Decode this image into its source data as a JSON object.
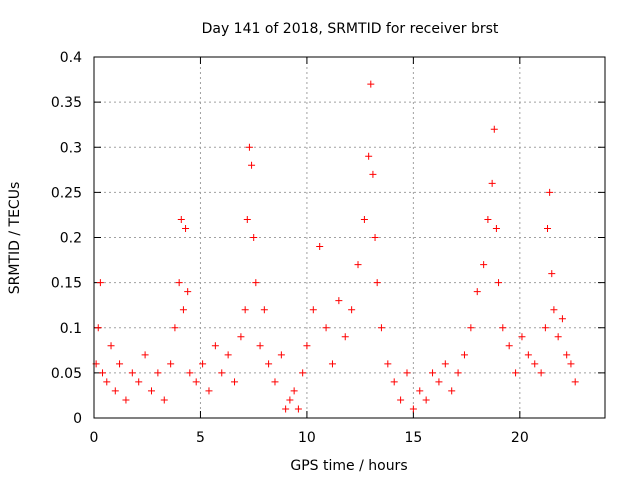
{
  "chart_data": {
    "type": "scatter",
    "title": "Day 141 of 2018, SRMTID for receiver brst",
    "xlabel": "GPS time / hours",
    "ylabel": "SRMTID / TECUs",
    "xlim": [
      0,
      24
    ],
    "ylim": [
      0,
      0.4
    ],
    "xticks": [
      0,
      5,
      10,
      15,
      20
    ],
    "xtick_labels": [
      "0",
      "5",
      "10",
      "15",
      "20"
    ],
    "yticks": [
      0,
      0.05,
      0.1,
      0.15,
      0.2,
      0.25,
      0.3,
      0.35,
      0.4
    ],
    "ytick_labels": [
      "0",
      "0.05",
      "0.1",
      "0.15",
      "0.2",
      "0.25",
      "0.3",
      "0.35",
      "0.4"
    ],
    "grid": true,
    "marker": "+",
    "color": "#ff0000",
    "series": [
      {
        "name": "brst",
        "x": [
          0.1,
          0.2,
          0.3,
          0.4,
          0.6,
          0.8,
          1.0,
          1.2,
          1.5,
          1.8,
          2.1,
          2.4,
          2.7,
          3.0,
          3.3,
          3.6,
          3.8,
          4.0,
          4.1,
          4.2,
          4.3,
          4.4,
          4.5,
          4.8,
          5.1,
          5.4,
          5.7,
          6.0,
          6.3,
          6.6,
          6.9,
          7.1,
          7.2,
          7.3,
          7.4,
          7.5,
          7.6,
          7.8,
          8.0,
          8.2,
          8.5,
          8.8,
          9.0,
          9.2,
          9.4,
          9.6,
          9.8,
          10.0,
          10.3,
          10.6,
          10.9,
          11.2,
          11.5,
          11.8,
          12.1,
          12.4,
          12.7,
          12.9,
          13.0,
          13.1,
          13.2,
          13.3,
          13.5,
          13.8,
          14.1,
          14.4,
          14.7,
          15.0,
          15.3,
          15.6,
          15.9,
          16.2,
          16.5,
          16.8,
          17.1,
          17.4,
          17.7,
          18.0,
          18.3,
          18.5,
          18.7,
          18.8,
          18.9,
          19.0,
          19.2,
          19.5,
          19.8,
          20.1,
          20.4,
          20.7,
          21.0,
          21.2,
          21.3,
          21.4,
          21.5,
          21.6,
          21.8,
          22.0,
          22.2,
          22.4,
          22.6
        ],
        "y": [
          0.06,
          0.1,
          0.15,
          0.05,
          0.04,
          0.08,
          0.03,
          0.06,
          0.02,
          0.05,
          0.04,
          0.07,
          0.03,
          0.05,
          0.02,
          0.06,
          0.1,
          0.15,
          0.22,
          0.12,
          0.21,
          0.14,
          0.05,
          0.04,
          0.06,
          0.03,
          0.08,
          0.05,
          0.07,
          0.04,
          0.09,
          0.12,
          0.22,
          0.3,
          0.28,
          0.2,
          0.15,
          0.08,
          0.12,
          0.06,
          0.04,
          0.07,
          0.01,
          0.02,
          0.03,
          0.01,
          0.05,
          0.08,
          0.12,
          0.19,
          0.1,
          0.06,
          0.13,
          0.09,
          0.12,
          0.17,
          0.22,
          0.29,
          0.37,
          0.27,
          0.2,
          0.15,
          0.1,
          0.06,
          0.04,
          0.02,
          0.05,
          0.01,
          0.03,
          0.02,
          0.05,
          0.04,
          0.06,
          0.03,
          0.05,
          0.07,
          0.1,
          0.14,
          0.17,
          0.22,
          0.26,
          0.32,
          0.21,
          0.15,
          0.1,
          0.08,
          0.05,
          0.09,
          0.07,
          0.06,
          0.05,
          0.1,
          0.21,
          0.25,
          0.16,
          0.12,
          0.09,
          0.11,
          0.07,
          0.06,
          0.04
        ]
      }
    ]
  }
}
